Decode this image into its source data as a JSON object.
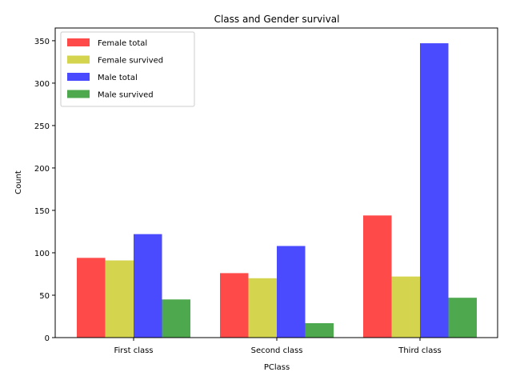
{
  "chart_data": {
    "type": "bar",
    "title": "Class and Gender survival",
    "xlabel": "PClass",
    "ylabel": "Count",
    "categories": [
      "First class",
      "Second class",
      "Third class"
    ],
    "ylim": [
      0,
      365
    ],
    "yticks": [
      0,
      50,
      100,
      150,
      200,
      250,
      300,
      350
    ],
    "legend_position": "top-left",
    "series": [
      {
        "name": "Female total",
        "color": "#ff4a4a",
        "values": [
          94,
          76,
          144
        ]
      },
      {
        "name": "Female survived",
        "color": "#d4d44f",
        "values": [
          91,
          70,
          72
        ]
      },
      {
        "name": "Male total",
        "color": "#4a4aff",
        "values": [
          122,
          108,
          347
        ]
      },
      {
        "name": "Male survived",
        "color": "#4ea94e",
        "values": [
          45,
          17,
          47
        ]
      }
    ]
  }
}
